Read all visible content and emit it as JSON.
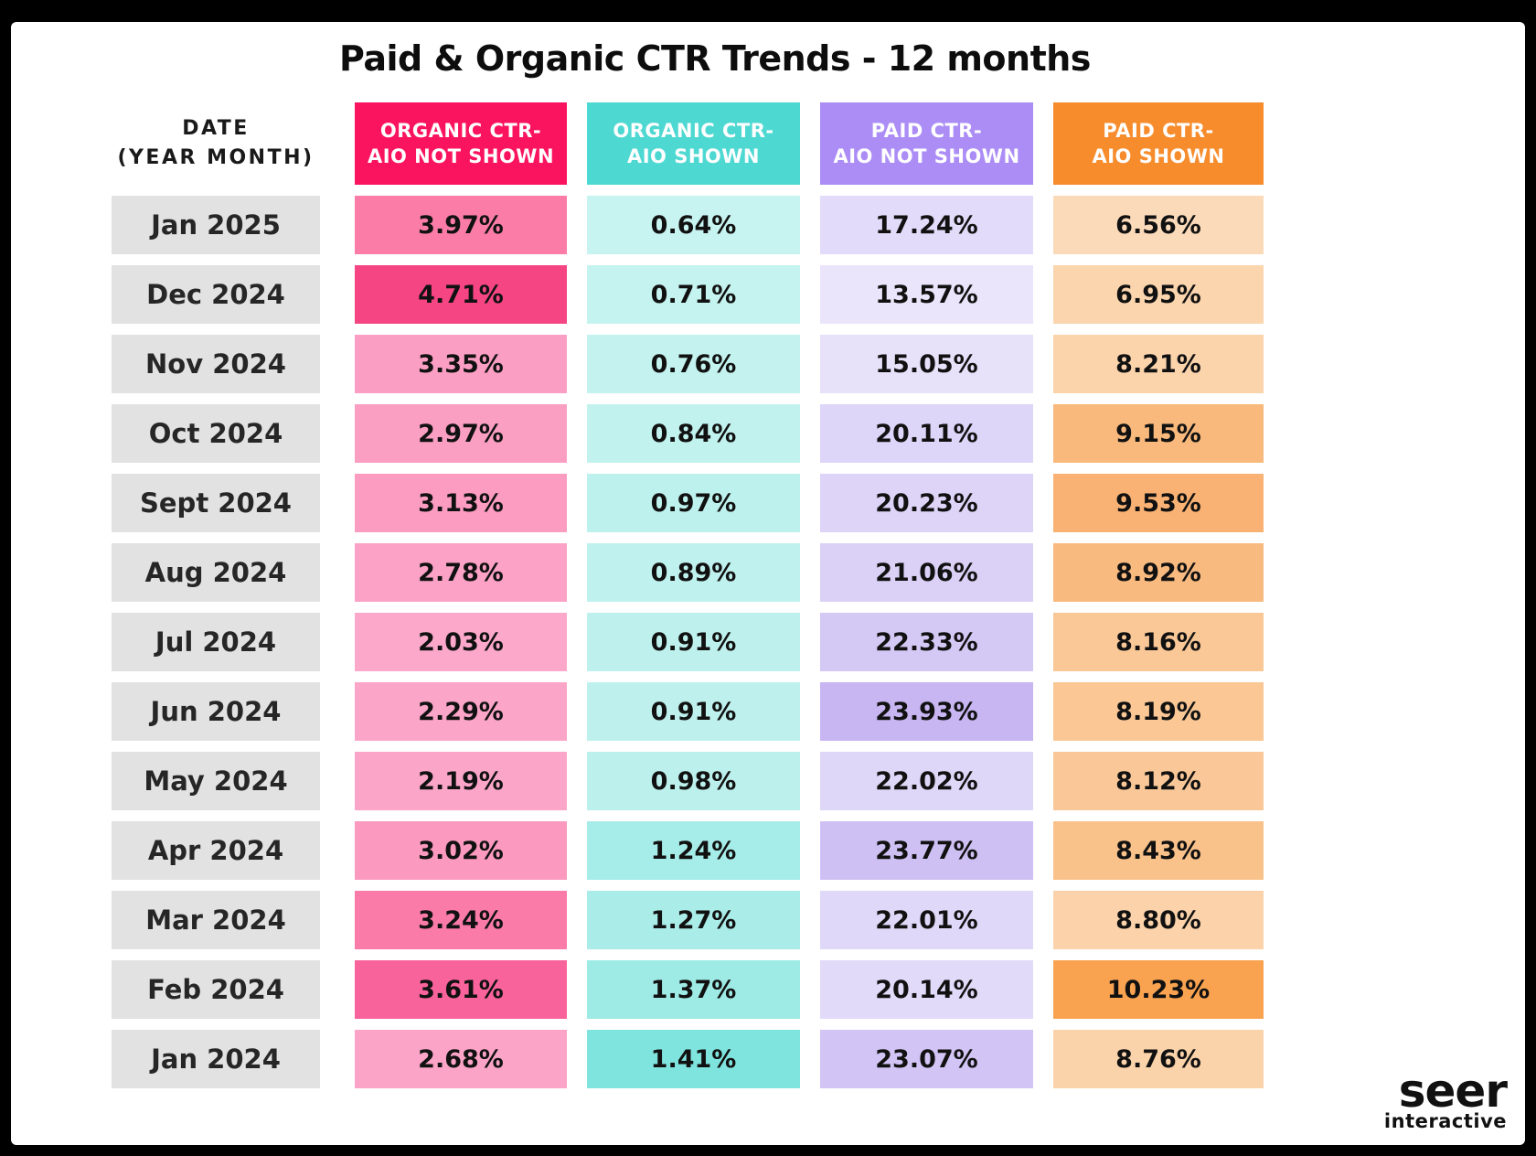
{
  "title": "Paid & Organic CTR Trends - 12 months",
  "date_header": {
    "line1": "DATE",
    "line2": "(YEAR MONTH)"
  },
  "columns": [
    {
      "id": "organic_ctr_aio_not_shown",
      "line1": "ORGANIC CTR-",
      "line2": "AIO NOT SHOWN",
      "header_bg": "#FA1460",
      "header_text_color": "#FFFFFF"
    },
    {
      "id": "organic_ctr_aio_shown",
      "line1": "ORGANIC CTR-",
      "line2": "AIO SHOWN",
      "header_bg": "#4ED8D2",
      "header_text_color": "#FFFFFF"
    },
    {
      "id": "paid_ctr_aio_not_shown",
      "line1": "PAID CTR-",
      "line2": "AIO NOT SHOWN",
      "header_bg": "#AB8DF5",
      "header_text_color": "#FFFFFF"
    },
    {
      "id": "paid_ctr_aio_shown",
      "line1": "PAID CTR-",
      "line2": "AIO SHOWN",
      "header_bg": "#F78C2D",
      "header_text_color": "#FFFFFF"
    }
  ],
  "rows": [
    {
      "date": "Jan 2025",
      "cells": [
        {
          "value": "3.97%",
          "bg": "#FA7CA7"
        },
        {
          "value": "0.64%",
          "bg": "#C7F3F0"
        },
        {
          "value": "17.24%",
          "bg": "#E2DBF9"
        },
        {
          "value": "6.56%",
          "bg": "#FBDAB9"
        }
      ]
    },
    {
      "date": "Dec 2024",
      "cells": [
        {
          "value": "4.71%",
          "bg": "#F54583"
        },
        {
          "value": "0.71%",
          "bg": "#C5F3EF"
        },
        {
          "value": "13.57%",
          "bg": "#EAE5FB"
        },
        {
          "value": "6.95%",
          "bg": "#FBD5AE"
        }
      ]
    },
    {
      "date": "Nov 2024",
      "cells": [
        {
          "value": "3.35%",
          "bg": "#FB9EC3"
        },
        {
          "value": "0.76%",
          "bg": "#C3F2EF"
        },
        {
          "value": "15.05%",
          "bg": "#E7E1FA"
        },
        {
          "value": "8.21%",
          "bg": "#FBD4AC"
        }
      ]
    },
    {
      "date": "Oct 2024",
      "cells": [
        {
          "value": "2.97%",
          "bg": "#FB9FC2"
        },
        {
          "value": "0.84%",
          "bg": "#C1F2EE"
        },
        {
          "value": "20.11%",
          "bg": "#DED6F8"
        },
        {
          "value": "9.15%",
          "bg": "#F9B97C"
        }
      ]
    },
    {
      "date": "Sept 2024",
      "cells": [
        {
          "value": "3.13%",
          "bg": "#FB9CC0"
        },
        {
          "value": "0.97%",
          "bg": "#BDF1ED"
        },
        {
          "value": "20.23%",
          "bg": "#DDD4F8"
        },
        {
          "value": "9.53%",
          "bg": "#F9B274"
        }
      ]
    },
    {
      "date": "Aug 2024",
      "cells": [
        {
          "value": "2.78%",
          "bg": "#FBA2C6"
        },
        {
          "value": "0.89%",
          "bg": "#BFF1EE"
        },
        {
          "value": "21.06%",
          "bg": "#DBD1F7"
        },
        {
          "value": "8.92%",
          "bg": "#F9BA80"
        }
      ]
    },
    {
      "date": "Jul 2024",
      "cells": [
        {
          "value": "2.03%",
          "bg": "#FBA8CA"
        },
        {
          "value": "0.91%",
          "bg": "#BEF1ED"
        },
        {
          "value": "22.33%",
          "bg": "#D4C8F5"
        },
        {
          "value": "8.16%",
          "bg": "#FAC897"
        }
      ]
    },
    {
      "date": "Jun 2024",
      "cells": [
        {
          "value": "2.29%",
          "bg": "#FBA5C8"
        },
        {
          "value": "0.91%",
          "bg": "#BEF1ED"
        },
        {
          "value": "23.93%",
          "bg": "#C8B6F2"
        },
        {
          "value": "8.19%",
          "bg": "#FAC795"
        }
      ]
    },
    {
      "date": "May 2024",
      "cells": [
        {
          "value": "2.19%",
          "bg": "#FBA6C9"
        },
        {
          "value": "0.98%",
          "bg": "#BCF0EC"
        },
        {
          "value": "22.02%",
          "bg": "#DFD7F8"
        },
        {
          "value": "8.12%",
          "bg": "#FAC898"
        }
      ]
    },
    {
      "date": "Apr 2024",
      "cells": [
        {
          "value": "3.02%",
          "bg": "#FB9ABE"
        },
        {
          "value": "1.24%",
          "bg": "#A6ECE8"
        },
        {
          "value": "23.77%",
          "bg": "#CFC0F4"
        },
        {
          "value": "8.43%",
          "bg": "#FAC28B"
        }
      ]
    },
    {
      "date": "Mar 2024",
      "cells": [
        {
          "value": "3.24%",
          "bg": "#FB7BA8"
        },
        {
          "value": "1.27%",
          "bg": "#A9ECE8"
        },
        {
          "value": "22.01%",
          "bg": "#E0D8F8"
        },
        {
          "value": "8.80%",
          "bg": "#FBD2A9"
        }
      ]
    },
    {
      "date": "Feb 2024",
      "cells": [
        {
          "value": "3.61%",
          "bg": "#F9639C"
        },
        {
          "value": "1.37%",
          "bg": "#9EEAE5"
        },
        {
          "value": "20.14%",
          "bg": "#E1DAF9"
        },
        {
          "value": "10.23%",
          "bg": "#F9A351"
        }
      ]
    },
    {
      "date": "Jan 2024",
      "cells": [
        {
          "value": "2.68%",
          "bg": "#FBA4C7"
        },
        {
          "value": "1.41%",
          "bg": "#80E4DE"
        },
        {
          "value": "23.07%",
          "bg": "#D2C4F5"
        },
        {
          "value": "8.76%",
          "bg": "#FBD3AA"
        }
      ]
    }
  ],
  "logo": {
    "name": "seer",
    "sub": "interactive"
  },
  "colors": {
    "frame": "#000000",
    "background": "#FFFFFF",
    "date_cell_bg": "#E3E2E2",
    "value_text": "#111111",
    "accent_pink": "#FA1460",
    "accent_teal": "#4ED8D2",
    "accent_purple": "#AB8DF5",
    "accent_orange": "#F78C2D"
  },
  "chart_data": {
    "type": "heatmap",
    "title": "Paid & Organic CTR Trends - 12 months",
    "categories": [
      "Jan 2025",
      "Dec 2024",
      "Nov 2024",
      "Oct 2024",
      "Sept 2024",
      "Aug 2024",
      "Jul 2024",
      "Jun 2024",
      "May 2024",
      "Apr 2024",
      "Mar 2024",
      "Feb 2024",
      "Jan 2024"
    ],
    "unit": "%",
    "series": [
      {
        "name": "Organic CTR - AIO Not Shown",
        "values": [
          3.97,
          4.71,
          3.35,
          2.97,
          3.13,
          2.78,
          2.03,
          2.29,
          2.19,
          3.02,
          3.24,
          3.61,
          2.68
        ]
      },
      {
        "name": "Organic CTR - AIO Shown",
        "values": [
          0.64,
          0.71,
          0.76,
          0.84,
          0.97,
          0.89,
          0.91,
          0.91,
          0.98,
          1.24,
          1.27,
          1.37,
          1.41
        ]
      },
      {
        "name": "Paid CTR - AIO Not Shown",
        "values": [
          17.24,
          13.57,
          15.05,
          20.11,
          20.23,
          21.06,
          22.33,
          23.93,
          22.02,
          23.77,
          22.01,
          20.14,
          23.07
        ]
      },
      {
        "name": "Paid CTR - AIO Shown",
        "values": [
          6.56,
          6.95,
          8.21,
          9.15,
          9.53,
          8.92,
          8.16,
          8.19,
          8.12,
          8.43,
          8.8,
          10.23,
          8.76
        ]
      }
    ],
    "layout": {
      "orientation": "months-as-rows",
      "legend_position": "header-row",
      "grid": false
    }
  }
}
